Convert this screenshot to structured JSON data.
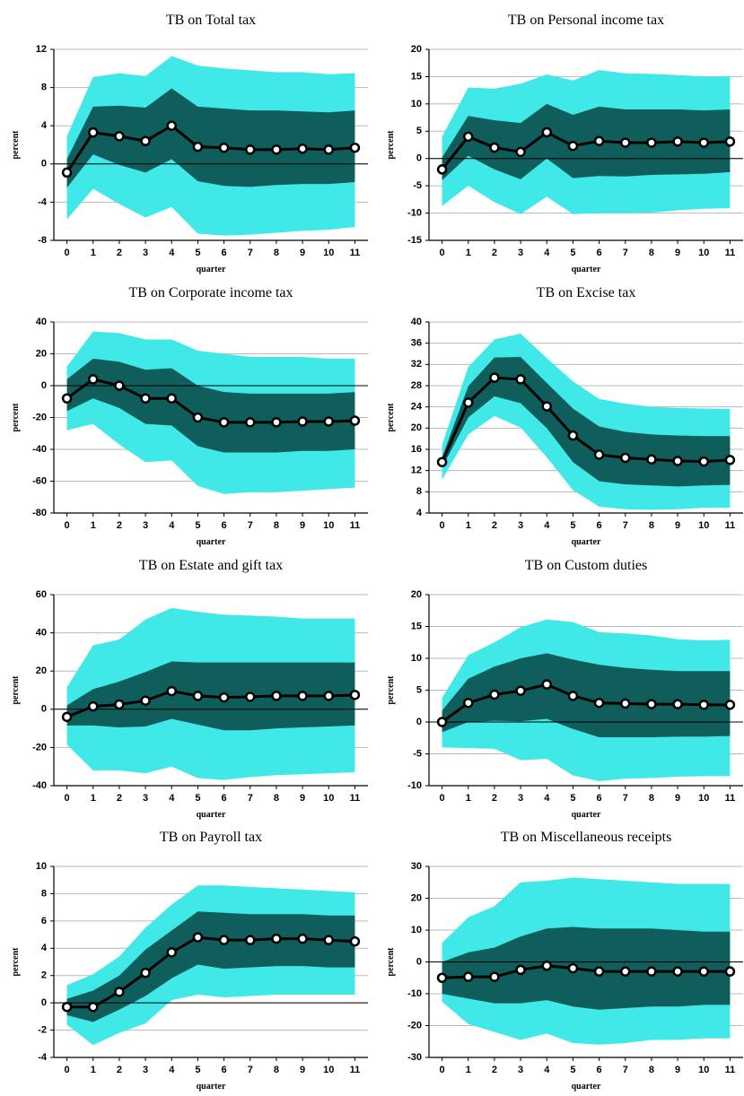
{
  "chart_data": [
    {
      "type": "line",
      "title": "TB on Total tax",
      "xlabel": "quarter",
      "ylabel": "percent",
      "x": [
        0,
        1,
        2,
        3,
        4,
        5,
        6,
        7,
        8,
        9,
        10,
        11
      ],
      "xlim": [
        -0.5,
        11.5
      ],
      "ylim": [
        -8,
        12
      ],
      "yticks": [
        -8,
        -4,
        0,
        4,
        8,
        12
      ],
      "grid": true,
      "bands": [
        {
          "color": "#40e8e8",
          "upper": [
            2.9,
            9.1,
            9.5,
            9.2,
            11.3,
            10.3,
            10.0,
            9.8,
            9.6,
            9.6,
            9.4,
            9.5
          ],
          "lower": [
            -5.8,
            -2.6,
            -4.2,
            -5.6,
            -4.5,
            -7.3,
            -7.5,
            -7.4,
            -7.2,
            -7.0,
            -6.9,
            -6.6
          ]
        },
        {
          "color": "#0f5e5c",
          "upper": [
            0.5,
            6.0,
            6.1,
            5.9,
            7.9,
            6.0,
            5.8,
            5.6,
            5.6,
            5.5,
            5.4,
            5.6
          ],
          "lower": [
            -2.5,
            1.0,
            -0.1,
            -0.9,
            0.5,
            -1.8,
            -2.3,
            -2.4,
            -2.2,
            -2.1,
            -2.1,
            -1.9
          ]
        }
      ],
      "series": [
        {
          "color": "#000000",
          "values": [
            -0.9,
            3.3,
            2.9,
            2.4,
            4.0,
            1.8,
            1.7,
            1.5,
            1.5,
            1.6,
            1.5,
            1.7
          ]
        }
      ]
    },
    {
      "type": "line",
      "title": "TB on Personal income tax",
      "xlabel": "quarter",
      "ylabel": "percent",
      "x": [
        0,
        1,
        2,
        3,
        4,
        5,
        6,
        7,
        8,
        9,
        10,
        11
      ],
      "xlim": [
        -0.5,
        11.5
      ],
      "ylim": [
        -15,
        20
      ],
      "yticks": [
        -15,
        -10,
        -5,
        0,
        5,
        10,
        15,
        20
      ],
      "grid": true,
      "bands": [
        {
          "color": "#40e8e8",
          "upper": [
            4,
            13,
            12.8,
            13.7,
            15.4,
            14.3,
            16.2,
            15.6,
            15.5,
            15.3,
            15,
            15
          ],
          "lower": [
            -8.7,
            -5,
            -8,
            -10.2,
            -7,
            -10.2,
            -10,
            -10,
            -9.9,
            -9.5,
            -9.2,
            -9.1
          ]
        },
        {
          "color": "#0f5e5c",
          "upper": [
            0.2,
            7.8,
            7.0,
            6.5,
            10,
            8,
            9.5,
            9,
            9,
            9,
            8.8,
            9
          ],
          "lower": [
            -4,
            0.5,
            -2,
            -3.8,
            0,
            -3.6,
            -3.2,
            -3.3,
            -3,
            -2.9,
            -2.8,
            -2.5
          ]
        }
      ],
      "series": [
        {
          "color": "#000000",
          "values": [
            -2,
            4,
            2,
            1.2,
            4.8,
            2.3,
            3.2,
            2.9,
            2.9,
            3.1,
            2.9,
            3.1
          ]
        }
      ]
    },
    {
      "type": "line",
      "title": "TB on Corporate income tax",
      "xlabel": "quarter",
      "ylabel": "percent",
      "x": [
        0,
        1,
        2,
        3,
        4,
        5,
        6,
        7,
        8,
        9,
        10,
        11
      ],
      "xlim": [
        -0.5,
        11.5
      ],
      "ylim": [
        -80,
        40
      ],
      "yticks": [
        -80,
        -60,
        -40,
        -20,
        0,
        20,
        40
      ],
      "grid": true,
      "bands": [
        {
          "color": "#40e8e8",
          "upper": [
            12,
            34,
            33,
            29,
            29,
            22,
            20,
            18,
            18,
            18,
            17,
            17
          ],
          "lower": [
            -28,
            -24,
            -37,
            -48,
            -47,
            -63,
            -68,
            -67,
            -67,
            -66,
            -65,
            -64
          ]
        },
        {
          "color": "#0f5e5c",
          "upper": [
            4,
            17,
            15,
            10,
            11,
            0,
            -4,
            -5,
            -5,
            -5,
            -5,
            -4
          ],
          "lower": [
            -16,
            -8,
            -14,
            -24,
            -25,
            -38,
            -42,
            -42,
            -42,
            -41,
            -41,
            -40
          ]
        }
      ],
      "series": [
        {
          "color": "#000000",
          "values": [
            -8,
            4,
            0,
            -8,
            -8,
            -20,
            -23,
            -23,
            -23,
            -22.5,
            -22.5,
            -22
          ]
        }
      ]
    },
    {
      "type": "line",
      "title": "TB on Excise tax",
      "xlabel": "quarter",
      "ylabel": "percent",
      "x": [
        0,
        1,
        2,
        3,
        4,
        5,
        6,
        7,
        8,
        9,
        10,
        11
      ],
      "xlim": [
        -0.5,
        11.5
      ],
      "ylim": [
        4,
        40
      ],
      "yticks": [
        4,
        8,
        12,
        16,
        20,
        24,
        28,
        32,
        36,
        40
      ],
      "grid": true,
      "bands": [
        {
          "color": "#40e8e8",
          "upper": [
            16.8,
            31.5,
            36.7,
            37.8,
            33.2,
            28.8,
            25.5,
            24.6,
            24,
            23.8,
            23.7,
            23.6
          ],
          "lower": [
            10.3,
            18.8,
            22.3,
            20.1,
            14.5,
            8.3,
            5.2,
            4.7,
            4.6,
            4.7,
            5,
            5
          ]
        },
        {
          "color": "#0f5e5c",
          "upper": [
            14.5,
            27.9,
            33.3,
            33.4,
            28.5,
            23.7,
            20.3,
            19.3,
            18.8,
            18.6,
            18.5,
            18.5
          ],
          "lower": [
            12.6,
            22,
            26,
            24.7,
            20,
            13.6,
            10,
            9.4,
            9.2,
            9,
            9.2,
            9.3
          ]
        }
      ],
      "series": [
        {
          "color": "#000000",
          "values": [
            13.6,
            24.8,
            29.5,
            29.2,
            24.1,
            18.6,
            15,
            14.4,
            14.1,
            13.8,
            13.7,
            14
          ]
        }
      ]
    },
    {
      "type": "line",
      "title": "TB on Estate and gift tax",
      "xlabel": "quarter",
      "ylabel": "percent",
      "x": [
        0,
        1,
        2,
        3,
        4,
        5,
        6,
        7,
        8,
        9,
        10,
        11
      ],
      "xlim": [
        -0.5,
        11.5
      ],
      "ylim": [
        -40,
        60
      ],
      "yticks": [
        -40,
        -20,
        0,
        20,
        40,
        60
      ],
      "grid": true,
      "bands": [
        {
          "color": "#40e8e8",
          "upper": [
            11.5,
            33.5,
            36.5,
            47,
            53,
            51,
            49.5,
            49,
            48.5,
            47.5,
            47.5,
            47.5
          ],
          "lower": [
            -18.5,
            -32,
            -32,
            -33.5,
            -30,
            -36,
            -37,
            -35.5,
            -34.5,
            -34,
            -33.5,
            -33
          ]
        },
        {
          "color": "#0f5e5c",
          "upper": [
            2,
            10.5,
            14.5,
            19.5,
            25,
            24.5,
            24.5,
            24.5,
            24.5,
            24.5,
            24.5,
            24.5
          ],
          "lower": [
            -8.5,
            -8.5,
            -9.5,
            -9,
            -5,
            -8,
            -11,
            -11,
            -10,
            -9.5,
            -9,
            -8.5
          ]
        }
      ],
      "series": [
        {
          "color": "#000000",
          "values": [
            -4,
            1.5,
            2.5,
            4.5,
            9.5,
            7,
            6.2,
            6.5,
            7,
            7,
            7,
            7.5
          ]
        }
      ]
    },
    {
      "type": "line",
      "title": "TB on Custom duties",
      "xlabel": "quarter",
      "ylabel": "percent",
      "x": [
        0,
        1,
        2,
        3,
        4,
        5,
        6,
        7,
        8,
        9,
        10,
        11
      ],
      "xlim": [
        -0.5,
        11.5
      ],
      "ylim": [
        -10,
        20
      ],
      "yticks": [
        -10,
        -5,
        0,
        5,
        10,
        15,
        20
      ],
      "grid": true,
      "bands": [
        {
          "color": "#40e8e8",
          "upper": [
            3.8,
            10.5,
            12.5,
            14.9,
            16.1,
            15.7,
            14.1,
            13.9,
            13.6,
            13,
            12.8,
            12.9
          ],
          "lower": [
            -4,
            -4.1,
            -4.2,
            -6,
            -5.8,
            -8.4,
            -9.3,
            -8.9,
            -8.8,
            -8.6,
            -8.5,
            -8.5
          ]
        },
        {
          "color": "#0f5e5c",
          "upper": [
            1.8,
            6.8,
            8.7,
            10,
            10.8,
            9.8,
            9,
            8.5,
            8.2,
            8,
            8,
            8
          ],
          "lower": [
            -1.6,
            0,
            0.2,
            0.1,
            0.5,
            -1.1,
            -2.4,
            -2.4,
            -2.4,
            -2.3,
            -2.3,
            -2.2
          ]
        }
      ],
      "series": [
        {
          "color": "#000000",
          "values": [
            0,
            3,
            4.3,
            4.9,
            5.9,
            4.1,
            3,
            2.9,
            2.8,
            2.8,
            2.7,
            2.7
          ]
        }
      ]
    },
    {
      "type": "line",
      "title": "TB on Payroll tax",
      "xlabel": "quarter",
      "ylabel": "percent",
      "x": [
        0,
        1,
        2,
        3,
        4,
        5,
        6,
        7,
        8,
        9,
        10,
        11
      ],
      "xlim": [
        -0.5,
        11.5
      ],
      "ylim": [
        -4,
        10
      ],
      "yticks": [
        -4,
        -2,
        0,
        2,
        4,
        6,
        8,
        10
      ],
      "grid": true,
      "bands": [
        {
          "color": "#40e8e8",
          "upper": [
            1.3,
            2.1,
            3.4,
            5.5,
            7.2,
            8.6,
            8.6,
            8.5,
            8.4,
            8.3,
            8.2,
            8.1
          ],
          "lower": [
            -1.6,
            -3.1,
            -2.2,
            -1.5,
            0.2,
            0.6,
            0.4,
            0.5,
            0.6,
            0.6,
            0.6,
            0.6
          ]
        },
        {
          "color": "#0f5e5c",
          "upper": [
            0.3,
            0.9,
            2,
            3.9,
            5.3,
            6.7,
            6.6,
            6.5,
            6.5,
            6.5,
            6.4,
            6.4
          ],
          "lower": [
            -0.9,
            -1.4,
            -0.5,
            0.5,
            1.8,
            2.8,
            2.5,
            2.6,
            2.7,
            2.7,
            2.6,
            2.6
          ]
        }
      ],
      "series": [
        {
          "color": "#000000",
          "values": [
            -0.3,
            -0.3,
            0.8,
            2.2,
            3.7,
            4.8,
            4.6,
            4.6,
            4.7,
            4.7,
            4.6,
            4.5
          ]
        }
      ]
    },
    {
      "type": "line",
      "title": "TB on Miscellaneous receipts",
      "xlabel": "quarter",
      "ylabel": "percent",
      "x": [
        0,
        1,
        2,
        3,
        4,
        5,
        6,
        7,
        8,
        9,
        10,
        11
      ],
      "xlim": [
        -0.5,
        11.5
      ],
      "ylim": [
        -30,
        30
      ],
      "yticks": [
        -30,
        -20,
        -10,
        0,
        10,
        20,
        30
      ],
      "grid": true,
      "bands": [
        {
          "color": "#40e8e8",
          "upper": [
            6,
            14,
            17.5,
            25,
            25.5,
            26.5,
            26,
            25.5,
            25,
            24.5,
            24.5,
            24.5
          ],
          "lower": [
            -12.5,
            -19.5,
            -22,
            -24.5,
            -22.5,
            -25.5,
            -26,
            -25.5,
            -24.5,
            -24.5,
            -24,
            -24
          ]
        },
        {
          "color": "#0f5e5c",
          "upper": [
            0,
            3,
            4.5,
            8,
            10.5,
            11,
            10.5,
            10.5,
            10.5,
            10,
            9.5,
            9.5
          ],
          "lower": [
            -10,
            -11.5,
            -13,
            -13,
            -12,
            -14,
            -15,
            -14.5,
            -14,
            -14,
            -13.5,
            -13.5
          ]
        }
      ],
      "series": [
        {
          "color": "#000000",
          "values": [
            -5,
            -4.7,
            -4.7,
            -2.5,
            -1.2,
            -2,
            -3,
            -3,
            -3,
            -3,
            -3,
            -3
          ]
        }
      ]
    }
  ]
}
